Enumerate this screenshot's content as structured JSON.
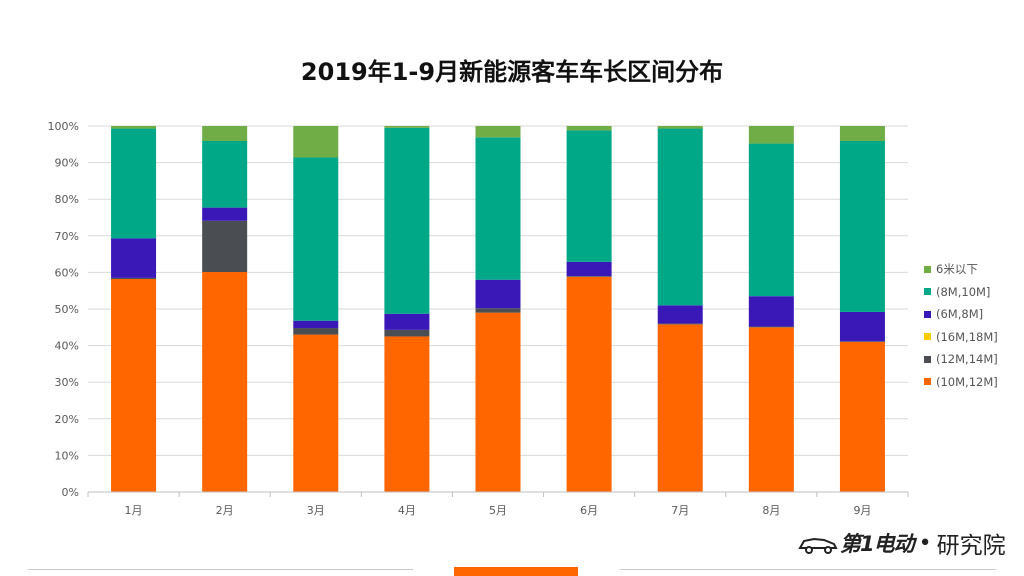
{
  "chart_data": {
    "type": "bar",
    "stacked": true,
    "title": "2019年1-9月新能源客车车长区间分布",
    "categories": [
      "1月",
      "2月",
      "3月",
      "4月",
      "5月",
      "6月",
      "7月",
      "8月",
      "9月"
    ],
    "y_ticks": [
      "0%",
      "10%",
      "20%",
      "30%",
      "40%",
      "50%",
      "60%",
      "70%",
      "80%",
      "90%",
      "100%"
    ],
    "ylim": [
      0,
      100
    ],
    "xlabel": "",
    "ylabel": "",
    "grid": true,
    "legend_position": "right",
    "series": [
      {
        "name": "(10M,12M]",
        "color": "#ff6600",
        "values": [
          58.2,
          60.1,
          43.0,
          42.5,
          49.0,
          58.8,
          45.8,
          45.0,
          41.0
        ]
      },
      {
        "name": "(12M,14M]",
        "color": "#4a4e52",
        "values": [
          0.3,
          14.0,
          1.8,
          1.8,
          1.2,
          0.2,
          0.2,
          0.2,
          0.2
        ]
      },
      {
        "name": "(16M,18M]",
        "color": "#ffcc00",
        "values": [
          0,
          0,
          0,
          0,
          0,
          0,
          0,
          0,
          0
        ]
      },
      {
        "name": "(6M,8M]",
        "color": "#3a18b8",
        "values": [
          10.8,
          3.6,
          2.0,
          4.4,
          7.8,
          3.9,
          5.0,
          8.3,
          8.0
        ]
      },
      {
        "name": "(8M,10M]",
        "color": "#00a887",
        "values": [
          30.0,
          18.2,
          44.6,
          50.8,
          38.9,
          35.9,
          48.3,
          41.7,
          46.7
        ]
      },
      {
        "name": "6米以下",
        "color": "#70ad47",
        "values": [
          0.7,
          4.1,
          8.6,
          0.5,
          3.1,
          1.2,
          0.7,
          4.8,
          4.1
        ]
      }
    ],
    "legend_order": [
      "6米以下",
      "(8M,10M]",
      "(6M,8M]",
      "(16M,18M]",
      "(12M,14M]",
      "(10M,12M]"
    ]
  },
  "brand": {
    "name": "第1电动",
    "separator": "•",
    "suffix": "研究院",
    "icon": "car-logo-icon"
  }
}
